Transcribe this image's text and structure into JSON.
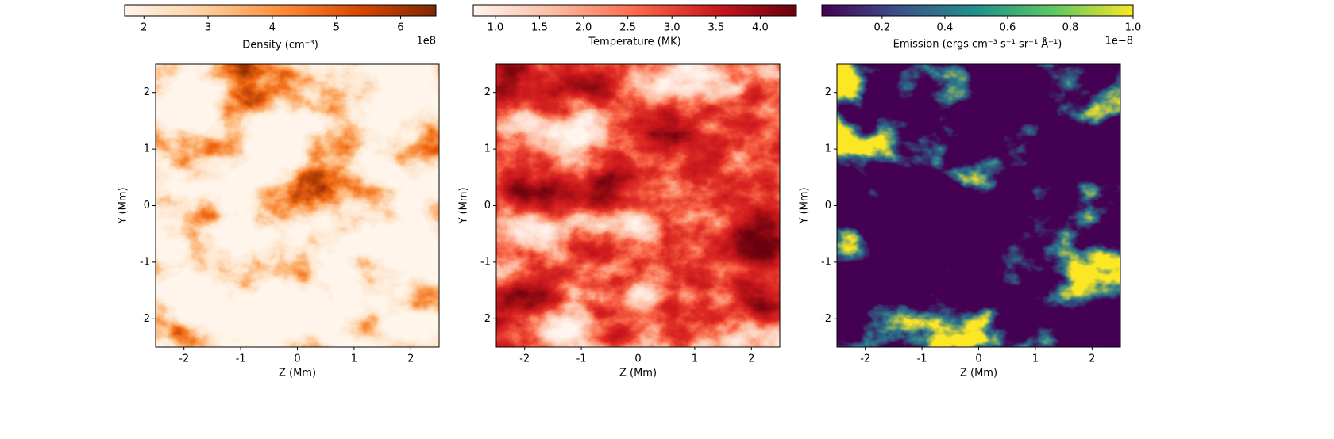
{
  "chart_data": [
    {
      "type": "heatmap",
      "colormap": "Oranges",
      "xlabel": "Z (Mm)",
      "ylabel": "Y (Mm)",
      "xlim": [
        -2.5,
        2.5
      ],
      "xticks": [
        -2,
        -1,
        0,
        1,
        2
      ],
      "ylim": [
        -2.5,
        2.5
      ],
      "yticks": [
        -2,
        -1,
        0,
        1,
        2
      ],
      "colorbar": {
        "label": "Density (cm⁻³)",
        "lim": [
          1.7,
          6.55
        ],
        "ticks": [
          2,
          3,
          4,
          5,
          6
        ],
        "offset": "1e8"
      }
    },
    {
      "type": "heatmap",
      "colormap": "Reds",
      "xlabel": "Z (Mm)",
      "ylabel": "Y (Mm)",
      "xlim": [
        -2.5,
        2.5
      ],
      "xticks": [
        -2,
        -1,
        0,
        1,
        2
      ],
      "ylim": [
        -2.5,
        2.5
      ],
      "yticks": [
        -2,
        -1,
        0,
        1,
        2
      ],
      "colorbar": {
        "label": "Temperature (MK)",
        "lim": [
          0.75,
          4.41
        ],
        "ticks": [
          {
            "value": 1,
            "label": "1.0"
          },
          1.5,
          {
            "value": 2,
            "label": "2.0"
          },
          2.5,
          {
            "value": 3,
            "label": "3.0"
          },
          3.5,
          {
            "value": 4,
            "label": "4.0"
          }
        ]
      }
    },
    {
      "type": "heatmap",
      "colormap": "viridis",
      "xlabel": "Z (Mm)",
      "ylabel": "Y (Mm)",
      "xlim": [
        -2.5,
        2.5
      ],
      "xticks": [
        -2,
        -1,
        0,
        1,
        2
      ],
      "ylim": [
        -2.5,
        2.5
      ],
      "yticks": [
        -2,
        -1,
        0,
        1,
        2
      ],
      "colorbar": {
        "label": "Emission (ergs cm⁻³ s⁻¹ sr⁻¹ Å⁻¹)",
        "lim": [
          0.008,
          1.0
        ],
        "ticks": [
          0.2,
          0.4,
          0.6,
          0.8,
          {
            "value": 1,
            "label": "1.0"
          }
        ],
        "offset": "1e−8"
      }
    }
  ]
}
